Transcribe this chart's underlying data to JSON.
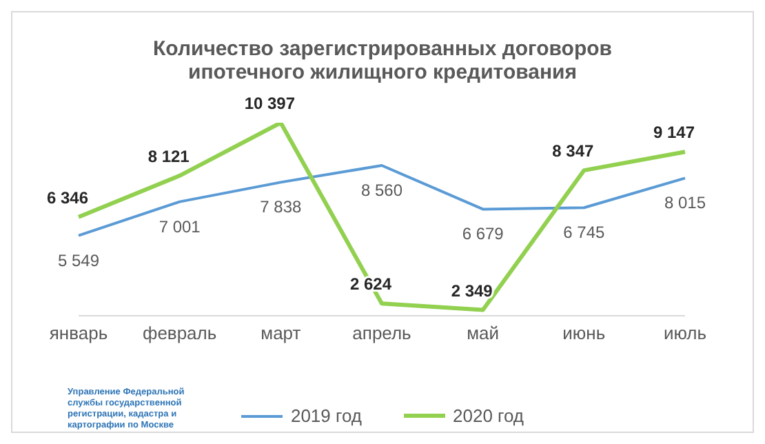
{
  "chart_data": {
    "type": "line",
    "title": "Количество зарегистрированных договоров ипотечного жилищного кредитования",
    "categories": [
      "январь",
      "февраль",
      "март",
      "апрель",
      "май",
      "июнь",
      "июль"
    ],
    "series": [
      {
        "name": "2019 год",
        "color": "#5b9bd5",
        "values": [
          5549,
          7001,
          7838,
          8560,
          6679,
          6745,
          8015
        ]
      },
      {
        "name": "2020 год",
        "color": "#92d050",
        "values": [
          6346,
          8121,
          10397,
          2624,
          2349,
          8347,
          9147
        ]
      }
    ],
    "data_labels": true,
    "legend": "bottom",
    "grid": false,
    "marker": "none",
    "annotations": [
      "Управление Федеральной службы государственной регистрации, кадастра и картографии по Москве"
    ]
  }
}
